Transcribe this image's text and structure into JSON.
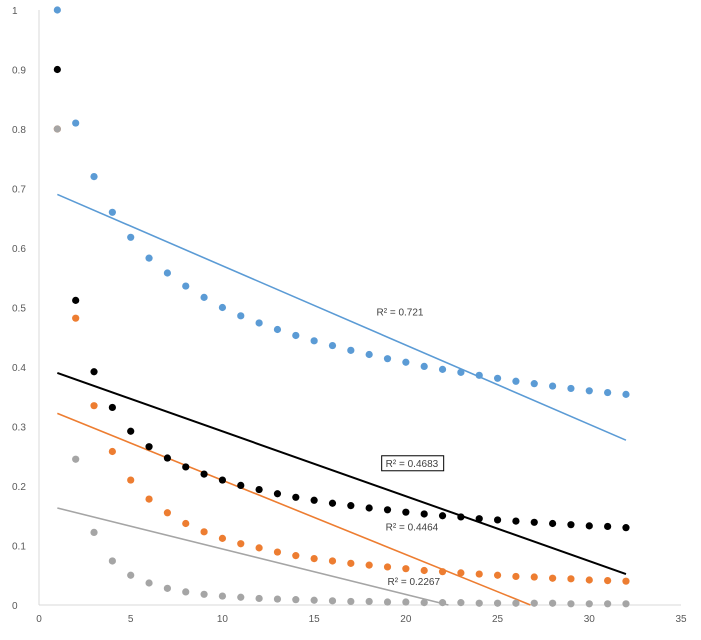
{
  "chart_data": {
    "type": "scatter",
    "xlim": [
      0,
      35
    ],
    "ylim": [
      0,
      1
    ],
    "x_ticks": [
      "0",
      "5",
      "10",
      "15",
      "20",
      "25",
      "30",
      "35"
    ],
    "y_ticks": [
      "0",
      "0.1",
      "0.2",
      "0.3",
      "0.4",
      "0.5",
      "0.6",
      "0.7",
      "0.8",
      "0.9",
      "1"
    ],
    "x_tick_values": [
      0,
      5,
      10,
      15,
      20,
      25,
      30,
      35
    ],
    "y_tick_values": [
      0,
      0.1,
      0.2,
      0.3,
      0.4,
      0.5,
      0.6,
      0.7,
      0.8,
      0.9,
      1
    ],
    "grid": false,
    "legend": "none",
    "series": [
      {
        "color": "#5b9bd5",
        "x": [
          1,
          2,
          3,
          4,
          5,
          6,
          7,
          8,
          9,
          10,
          11,
          12,
          13,
          14,
          15,
          16,
          17,
          18,
          19,
          20,
          21,
          22,
          23,
          24,
          25,
          26,
          27,
          28,
          29,
          30,
          31,
          32
        ],
        "y": [
          1.0,
          0.81,
          0.72,
          0.66,
          0.618,
          0.583,
          0.558,
          0.536,
          0.517,
          0.5,
          0.486,
          0.474,
          0.463,
          0.453,
          0.444,
          0.436,
          0.428,
          0.421,
          0.414,
          0.408,
          0.401,
          0.396,
          0.391,
          0.386,
          0.381,
          0.376,
          0.372,
          0.368,
          0.364,
          0.36,
          0.357,
          0.354
        ],
        "trendline": {
          "y_start": 0.69,
          "y_end": 0.277,
          "r2_label": "R² = 0.721",
          "label_x": 18.4,
          "label_y": 0.488,
          "boxed": false
        }
      },
      {
        "color": "#000000",
        "x": [
          1,
          2,
          3,
          4,
          5,
          6,
          7,
          8,
          9,
          10,
          11,
          12,
          13,
          14,
          15,
          16,
          17,
          18,
          19,
          20,
          21,
          22,
          23,
          24,
          25,
          26,
          27,
          28,
          29,
          30,
          31,
          32
        ],
        "y": [
          0.9,
          0.512,
          0.392,
          0.332,
          0.292,
          0.266,
          0.247,
          0.232,
          0.22,
          0.21,
          0.201,
          0.194,
          0.187,
          0.181,
          0.176,
          0.171,
          0.167,
          0.163,
          0.16,
          0.156,
          0.153,
          0.15,
          0.148,
          0.145,
          0.143,
          0.141,
          0.139,
          0.137,
          0.135,
          0.133,
          0.132,
          0.13
        ],
        "trendline": {
          "y_start": 0.39,
          "y_end": 0.052,
          "r2_label": "R² = 0.4683",
          "label_x": 18.9,
          "label_y": 0.234,
          "boxed": true
        }
      },
      {
        "color": "#ed7d31",
        "x": [
          1,
          2,
          3,
          4,
          5,
          6,
          7,
          8,
          9,
          10,
          11,
          12,
          13,
          14,
          15,
          16,
          17,
          18,
          19,
          20,
          21,
          22,
          23,
          24,
          25,
          26,
          27,
          28,
          29,
          30,
          31,
          32
        ],
        "y": [
          0.8,
          0.482,
          0.335,
          0.258,
          0.21,
          0.178,
          0.155,
          0.137,
          0.123,
          0.112,
          0.103,
          0.096,
          0.089,
          0.083,
          0.078,
          0.074,
          0.07,
          0.067,
          0.064,
          0.061,
          0.058,
          0.056,
          0.054,
          0.052,
          0.05,
          0.048,
          0.047,
          0.045,
          0.044,
          0.042,
          0.041,
          0.04
        ],
        "trendline": {
          "y_start": 0.322,
          "y_end": -0.065,
          "r2_label": "R² = 0.4464",
          "label_x": 18.9,
          "label_y": 0.127,
          "boxed": false
        }
      },
      {
        "color": "#a5a5a5",
        "x": [
          1,
          2,
          3,
          4,
          5,
          6,
          7,
          8,
          9,
          10,
          11,
          12,
          13,
          14,
          15,
          16,
          17,
          18,
          19,
          20,
          21,
          22,
          23,
          24,
          25,
          26,
          27,
          28,
          29,
          30,
          31,
          32
        ],
        "y": [
          0.8,
          0.245,
          0.122,
          0.074,
          0.05,
          0.037,
          0.028,
          0.022,
          0.018,
          0.015,
          0.013,
          0.011,
          0.01,
          0.009,
          0.008,
          0.007,
          0.006,
          0.006,
          0.005,
          0.005,
          0.004,
          0.004,
          0.004,
          0.003,
          0.003,
          0.003,
          0.003,
          0.003,
          0.002,
          0.002,
          0.002,
          0.002
        ],
        "trendline": {
          "y_start": 0.163,
          "y_end": -0.074,
          "r2_label": "R² = 0.2267",
          "label_x": 19.0,
          "label_y": 0.035,
          "boxed": false
        }
      }
    ]
  }
}
